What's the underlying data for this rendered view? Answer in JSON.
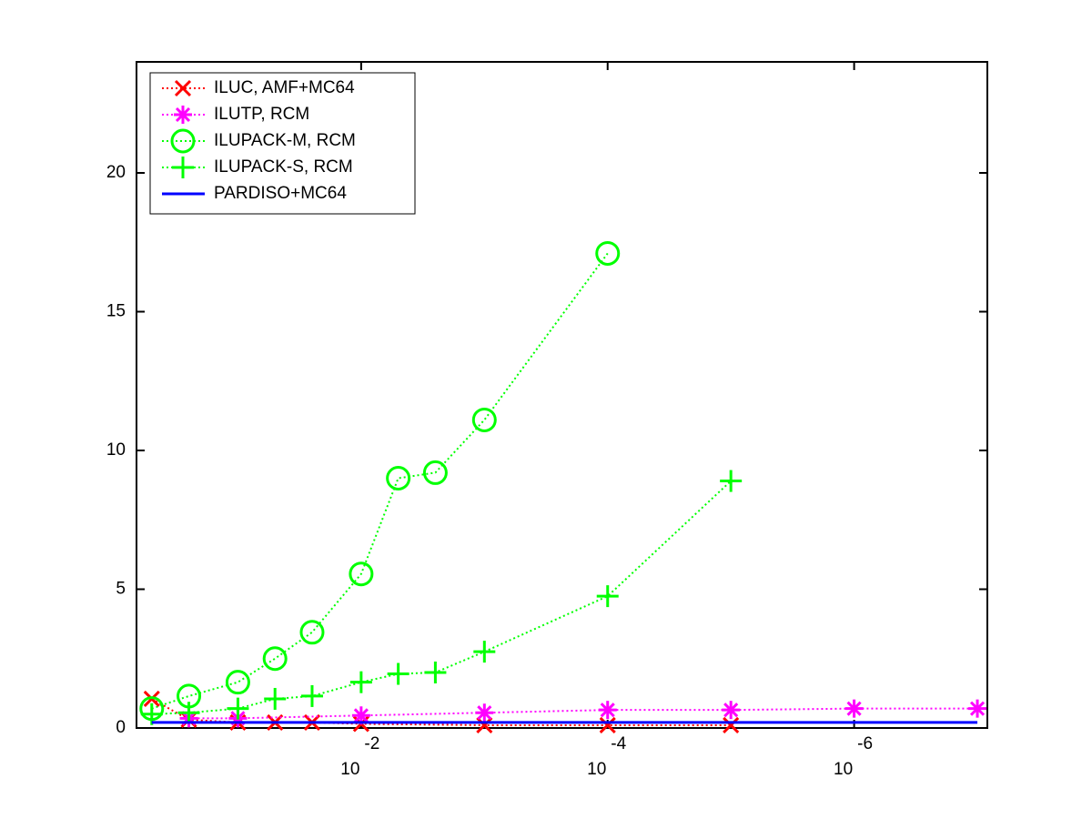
{
  "chart_data": {
    "type": "line",
    "xscale": "log",
    "xlim": [
      0.665,
      8.3e-08
    ],
    "ylim": [
      0,
      24
    ],
    "xticks": [
      {
        "value": 0.01,
        "label": "10",
        "exponent": "-2"
      },
      {
        "value": 0.0001,
        "label": "10",
        "exponent": "-4"
      },
      {
        "value": 1e-06,
        "label": "10",
        "exponent": "-6"
      }
    ],
    "yticks": [
      0,
      5,
      10,
      15,
      20
    ],
    "grid": false,
    "legend": "upper-left",
    "series": [
      {
        "name": "ILUC, AMF+MC64",
        "color": "#ff0000",
        "marker": "x",
        "linestyle": "dotted",
        "x": [
          0.5,
          0.25,
          0.1,
          0.05,
          0.025,
          0.01,
          0.001,
          0.0001,
          1e-05
        ],
        "values": [
          1.05,
          0.3,
          0.2,
          0.2,
          0.2,
          0.15,
          0.1,
          0.1,
          0.1
        ]
      },
      {
        "name": "ILUTP, RCM",
        "color": "#ff00ff",
        "marker": "star",
        "linestyle": "dotted",
        "x": [
          0.25,
          0.1,
          0.01,
          0.001,
          0.0001,
          1e-05,
          1e-06,
          1e-07
        ],
        "values": [
          0.35,
          0.35,
          0.45,
          0.55,
          0.65,
          0.65,
          0.7,
          0.7
        ]
      },
      {
        "name": "ILUPACK-M, RCM",
        "color": "#00ff00",
        "marker": "circle",
        "linestyle": "dotted",
        "x": [
          0.5,
          0.25,
          0.1,
          0.05,
          0.025,
          0.01,
          0.005,
          0.0025,
          0.001,
          0.0001
        ],
        "values": [
          0.7,
          1.15,
          1.65,
          2.5,
          3.45,
          5.55,
          9.0,
          9.2,
          11.1,
          17.1
        ]
      },
      {
        "name": "ILUPACK-S, RCM",
        "color": "#00ff00",
        "marker": "plus",
        "linestyle": "dotted",
        "x": [
          0.5,
          0.25,
          0.1,
          0.05,
          0.025,
          0.01,
          0.005,
          0.0025,
          0.001,
          0.0001,
          1e-05
        ],
        "values": [
          0.5,
          0.55,
          0.7,
          1.05,
          1.15,
          1.65,
          1.95,
          2.0,
          2.75,
          4.75,
          8.9
        ]
      },
      {
        "name": "PARDISO+MC64",
        "color": "#0000ff",
        "marker": "none",
        "linestyle": "solid",
        "x": [
          0.5,
          1e-07
        ],
        "values": [
          0.2,
          0.2
        ]
      }
    ]
  }
}
